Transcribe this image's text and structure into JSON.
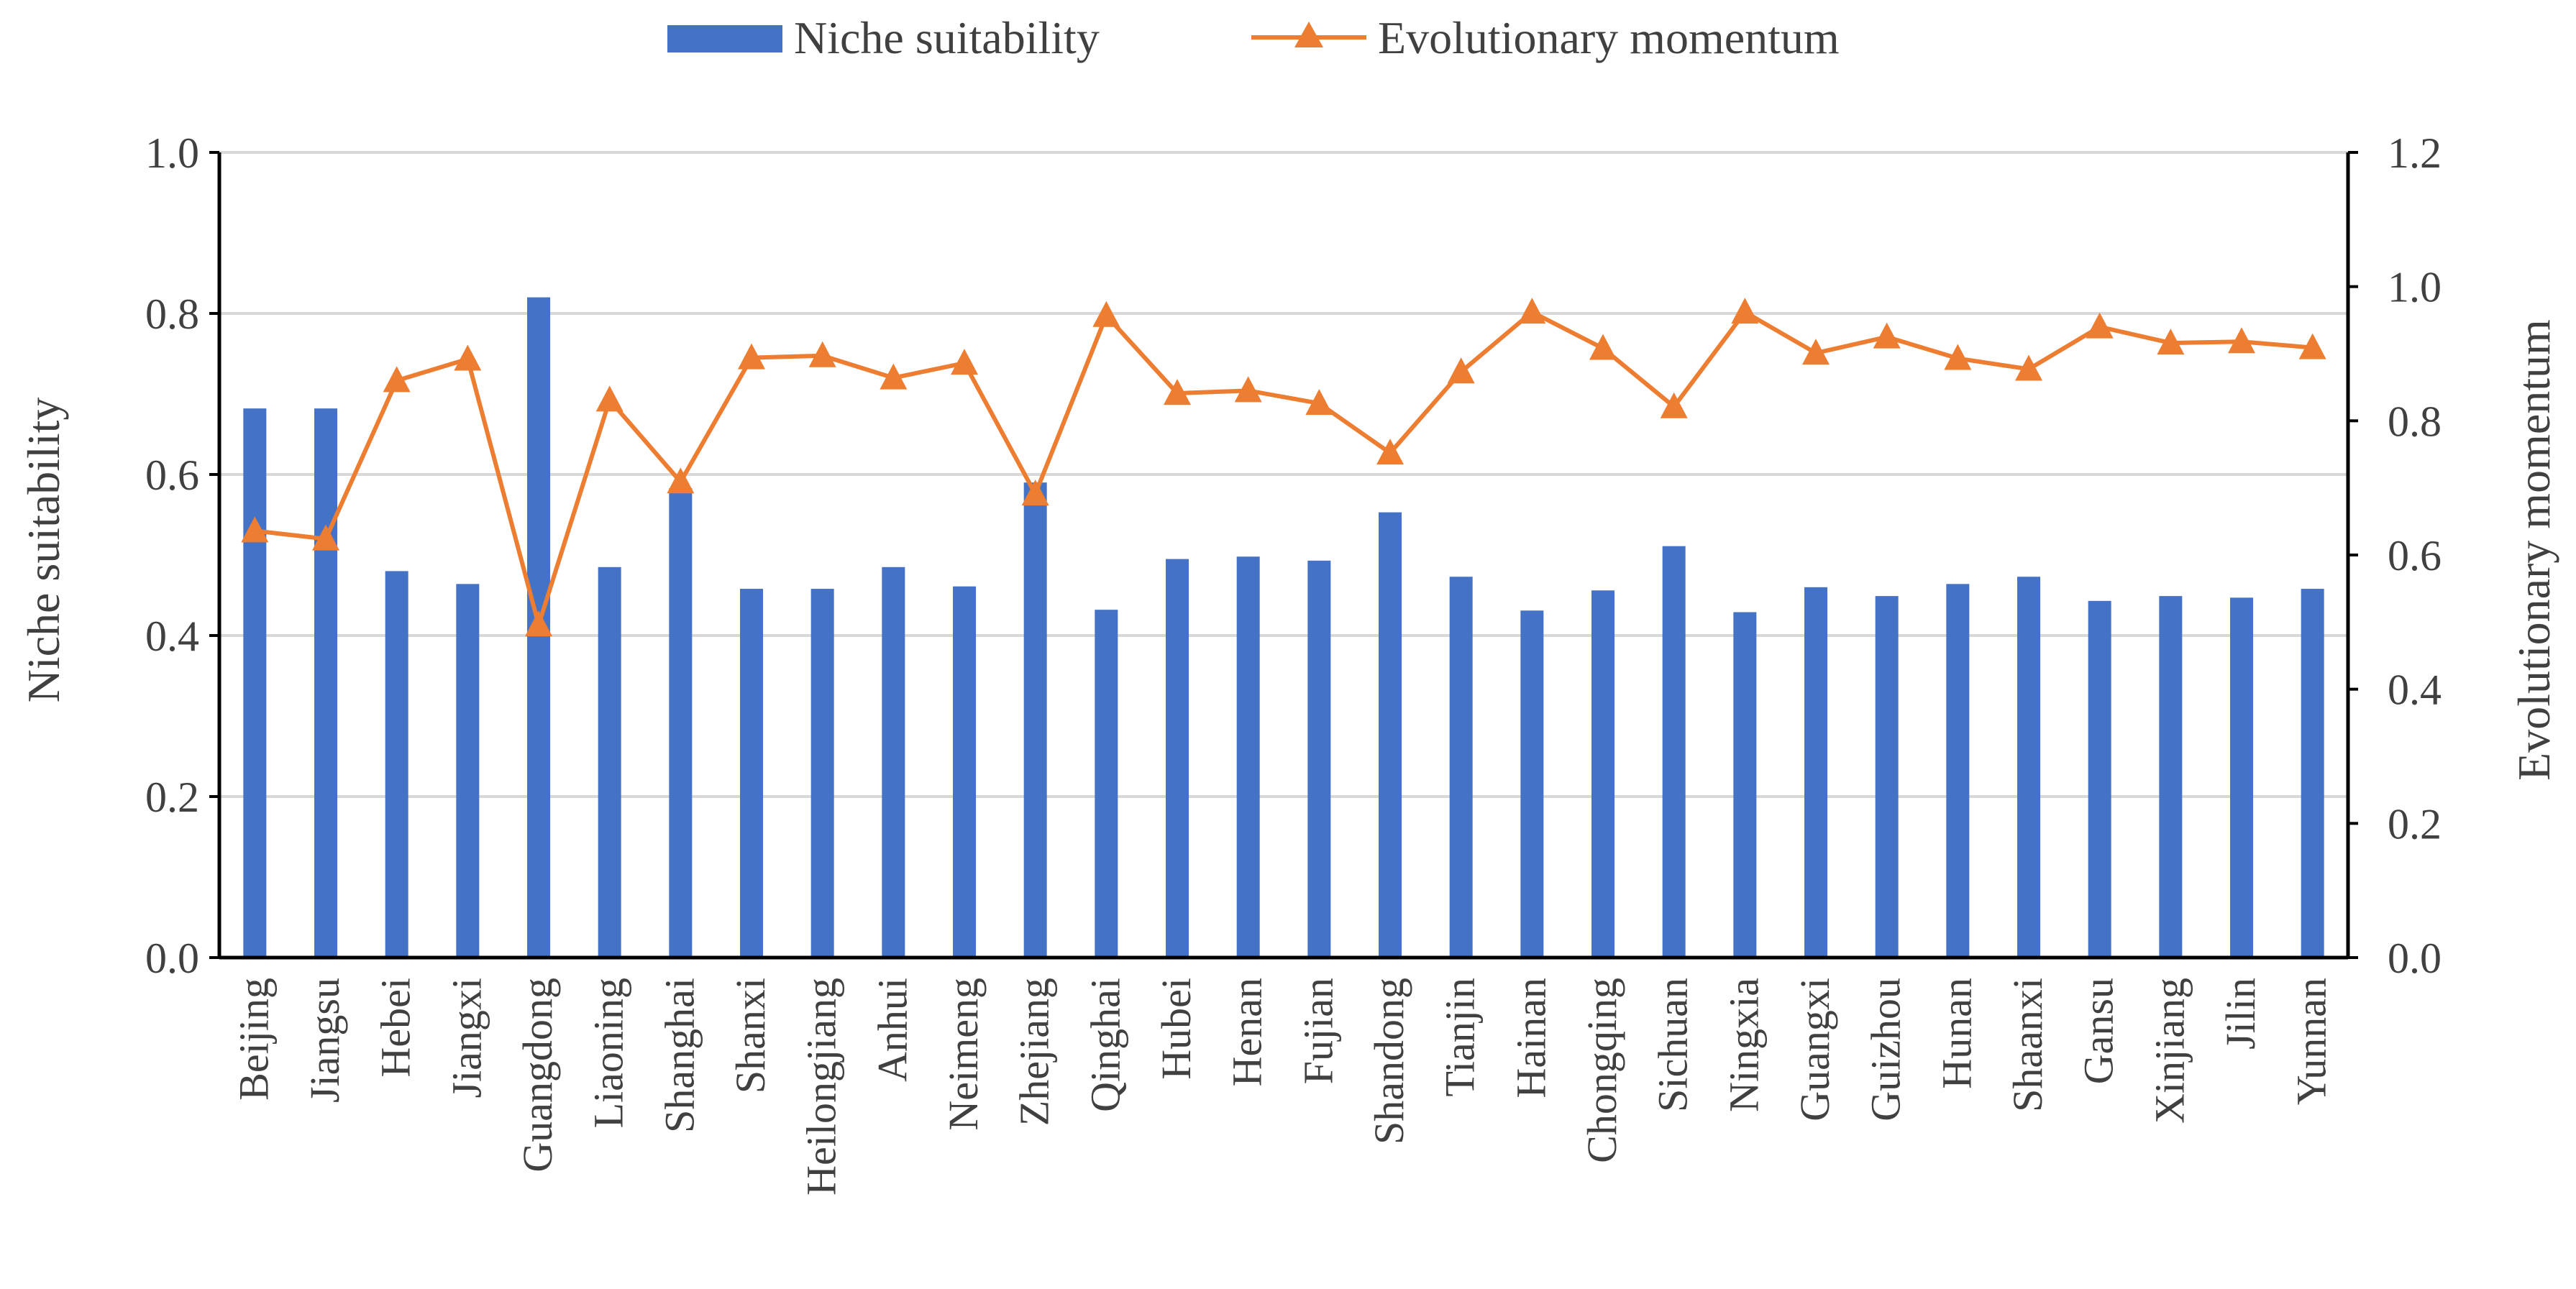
{
  "chart_data": {
    "type": "bar+line",
    "categories": [
      "Beijing",
      "Jiangsu",
      "Hebei",
      "Jiangxi",
      "Guangdong",
      "Liaoning",
      "Shanghai",
      "Shanxi",
      "Heilongjiang",
      "Anhui",
      "Neimeng",
      "Zhejiang",
      "Qinghai",
      "Hubei",
      "Henan",
      "Fujian",
      "Shandong",
      "Tianjin",
      "Hainan",
      "Chongqing",
      "Sichuan",
      "Ningxia",
      "Guangxi",
      "Guizhou",
      "Hunan",
      "Shaanxi",
      "Gansu",
      "Xinjiang",
      "Jilin",
      "Yunnan"
    ],
    "series": [
      {
        "name": "Niche suitability",
        "type": "bar",
        "axis": "left",
        "color": "#4472C4",
        "values": [
          0.682,
          0.682,
          0.48,
          0.464,
          0.82,
          0.485,
          0.583,
          0.458,
          0.458,
          0.485,
          0.461,
          0.59,
          0.432,
          0.495,
          0.498,
          0.493,
          0.553,
          0.473,
          0.431,
          0.456,
          0.511,
          0.429,
          0.46,
          0.449,
          0.464,
          0.473,
          0.443,
          0.449,
          0.447,
          0.458
        ]
      },
      {
        "name": "Evolutionary momentum",
        "type": "line",
        "axis": "right",
        "marker": "triangle",
        "color": "#ED7D31",
        "values": [
          0.636,
          0.624,
          0.86,
          0.892,
          0.496,
          0.831,
          0.709,
          0.894,
          0.897,
          0.864,
          0.886,
          0.691,
          0.957,
          0.841,
          0.845,
          0.826,
          0.752,
          0.873,
          0.962,
          0.908,
          0.821,
          0.962,
          0.901,
          0.925,
          0.893,
          0.877,
          0.94,
          0.916,
          0.918,
          0.909
        ]
      }
    ],
    "ylabel": "Niche suitability",
    "y2label": "Evolutionary momentum",
    "ylim": [
      0,
      1.0
    ],
    "y2lim": [
      0,
      1.2
    ],
    "yticks": [
      "0.0",
      "0.2",
      "0.4",
      "0.6",
      "0.8",
      "1.0"
    ],
    "y2ticks": [
      "0.0",
      "0.2",
      "0.4",
      "0.6",
      "0.8",
      "1.0",
      "1.2"
    ],
    "grid": true,
    "legend_position": "top-center"
  }
}
